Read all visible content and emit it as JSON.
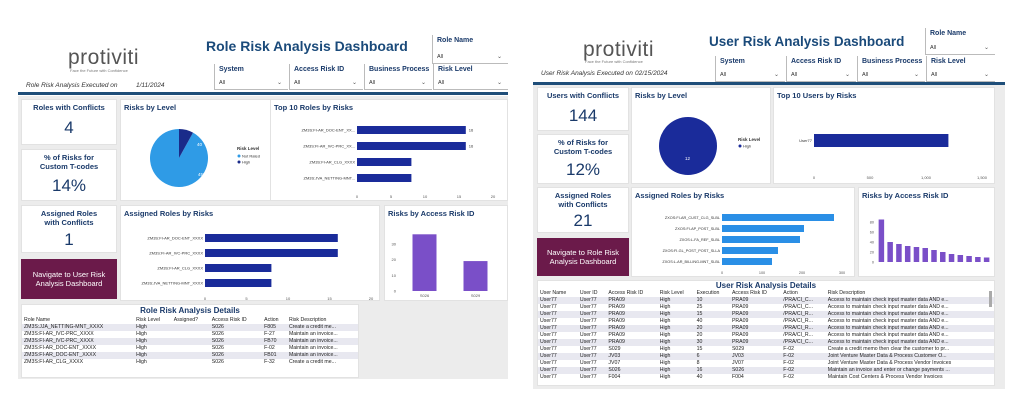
{
  "d1": {
    "logo": "protiviti",
    "logo_sub": "Face the Future with Confidence",
    "title": "Role Risk Analysis Dashboard",
    "executed_label": "Role Risk Analysis Executed on",
    "executed_date": "1/11/2024",
    "slicers": {
      "role_name": {
        "label": "Role Name",
        "value": "All"
      },
      "system": {
        "label": "System",
        "value": "All"
      },
      "access_risk_id": {
        "label": "Access Risk ID",
        "value": "All"
      },
      "business_process": {
        "label": "Business Process",
        "value": "All"
      },
      "risk_level": {
        "label": "Risk Level",
        "value": "All"
      }
    },
    "kpi_roles": {
      "title": "Roles with Conflicts",
      "value": "4"
    },
    "kpi_pct": {
      "title": "% of Risks for Custom T-codes",
      "value": "14%"
    },
    "kpi_assigned": {
      "title": "Assigned Roles with Conflicts",
      "value": "1"
    },
    "nav_button": "Navigate to User Risk Analysis Dashboard",
    "risks_by_level": {
      "title": "Risks by Level",
      "legend_title": "Risk Level",
      "legend": [
        "Not Rated",
        "High"
      ],
      "label_small": "40",
      "label_big": "458"
    },
    "top10": {
      "title": "Top 10 Roles by Risks"
    },
    "assigned": {
      "title": "Assigned Roles by Risks"
    },
    "access": {
      "title": "Risks by Access Risk ID"
    },
    "details": {
      "title": "Role Risk Analysis Details",
      "columns": [
        "Role Name",
        "Risk Level",
        "Assigned?",
        "Access Risk ID",
        "Action",
        "Risk Description"
      ],
      "rows": [
        [
          "ZM3S:JJA_NETTING-MNT_XXXX",
          "High",
          "",
          "S026",
          "F805",
          "Create a credit me..."
        ],
        [
          "ZM3S:FI-AR_IVC-PRC_XXXX",
          "High",
          "",
          "S026",
          "F-27",
          "Maintain an invoice..."
        ],
        [
          "ZM3S:FI-AR_IVC-PRC_XXXX",
          "High",
          "",
          "S026",
          "FB70",
          "Maintain an invoice..."
        ],
        [
          "ZM3S:FI-AR_DOC-ENT_XXXX",
          "High",
          "",
          "S026",
          "F-02",
          "Maintain an invoice..."
        ],
        [
          "ZM3S:FI-AR_DOC-ENT_XXXX",
          "High",
          "",
          "S026",
          "FB01",
          "Maintain an invoice..."
        ],
        [
          "ZM3S:FI-AR_CLG_XXXX",
          "High",
          "",
          "S026",
          "F-32",
          "Create a credit me..."
        ]
      ]
    }
  },
  "d2": {
    "logo": "protiviti",
    "logo_sub": "Face the Future with Confidence",
    "title": "User Risk Analysis Dashboard",
    "executed_label": "User Risk Analysis Executed on",
    "executed_date": "02/15/2024",
    "slicers": {
      "role_name": {
        "label": "Role Name",
        "value": "All"
      },
      "system": {
        "label": "System",
        "value": "All"
      },
      "access_risk_id": {
        "label": "Access Risk ID",
        "value": "All"
      },
      "business_process": {
        "label": "Business Process",
        "value": "All"
      },
      "risk_level": {
        "label": "Risk Level",
        "value": "All"
      }
    },
    "kpi_users": {
      "title": "Users with Conflicts",
      "value": "144"
    },
    "kpi_pct": {
      "title": "% of Risks for Custom T-codes",
      "value": "12%"
    },
    "kpi_assigned": {
      "title": "Assigned Roles with Conflicts",
      "value": "21"
    },
    "nav_button": "Navigate to Role Risk Analysis Dashboard",
    "risks_by_level": {
      "title": "Risks by Level",
      "legend_title": "Risk Level",
      "legend": [
        "High"
      ],
      "label_big": "12"
    },
    "top10": {
      "title": "Top 10 Users by Risks"
    },
    "assigned": {
      "title": "Assigned Roles by Risks"
    },
    "access": {
      "title": "Risks by Access Risk ID"
    },
    "details": {
      "title": "User Risk Analysis Details",
      "columns": [
        "User Name",
        "User ID",
        "Access Risk ID",
        "Risk Level",
        "Execution",
        "Access Risk ID",
        "Action",
        "Risk Description"
      ],
      "rows": [
        [
          "User77",
          "User77",
          "PRA09",
          "High",
          "10",
          "PRA09",
          "/PRA/CI_C...",
          "Access to maintain check input master data AND e..."
        ],
        [
          "User77",
          "User77",
          "PRA09",
          "High",
          "25",
          "PRA09",
          "/PRA/CI_C...",
          "Access to maintain check input master data AND e..."
        ],
        [
          "User77",
          "User77",
          "PRA09",
          "High",
          "15",
          "PRA09",
          "/PRA/CI_R...",
          "Access to maintain check input master data AND e..."
        ],
        [
          "User77",
          "User77",
          "PRA09",
          "High",
          "40",
          "PRA09",
          "/PRA/CI_R...",
          "Access to maintain check input master data AND e..."
        ],
        [
          "User77",
          "User77",
          "PRA09",
          "High",
          "20",
          "PRA09",
          "/PRA/CI_R...",
          "Access to maintain check input master data AND e..."
        ],
        [
          "User77",
          "User77",
          "PRA09",
          "High",
          "20",
          "PRA09",
          "/PRA/CI_R...",
          "Access to maintain check input master data AND e..."
        ],
        [
          "User77",
          "User77",
          "PRA09",
          "High",
          "30",
          "PRA09",
          "/PRA/CI_C...",
          "Access to maintain check input master data AND e..."
        ],
        [
          "User77",
          "User77",
          "S029",
          "High",
          "15",
          "S029",
          "F-02",
          "Create a credit memo then clear the customer to pr..."
        ],
        [
          "User77",
          "User77",
          "JV03",
          "High",
          "6",
          "JV03",
          "F-02",
          "Joint Venture Master Data & Process Customer O..."
        ],
        [
          "User77",
          "User77",
          "JV07",
          "High",
          "8",
          "JV07",
          "F-02",
          "Joint Venture Master Data & Process Vendor Invoices"
        ],
        [
          "User77",
          "User77",
          "S026",
          "High",
          "16",
          "S026",
          "F-02",
          "Maintain an invoice and enter or change payments ..."
        ],
        [
          "User77",
          "User77",
          "F004",
          "High",
          "40",
          "F004",
          "F-02",
          "Maintain Cost Centers & Process Vendor Invoices"
        ]
      ]
    }
  },
  "chart_data": [
    {
      "type": "pie",
      "title": "Risks by Level",
      "categories": [
        "Not Rated",
        "High"
      ],
      "values": [
        458,
        40
      ]
    },
    {
      "type": "bar",
      "title": "Top 10 Roles by Risks",
      "categories": [
        "ZM3S:FI-AR_DOC-ENT_XX...",
        "ZM3S:FI-AR_IVC-PRC_XX...",
        "ZM3S:FI-AR_CLG_XXXX",
        "ZM3S:JVA_NETTING-MNT..."
      ],
      "values": [
        16,
        16,
        8,
        8
      ],
      "data_labels": [
        "16",
        "16",
        "",
        ""
      ],
      "xticks": [
        "0",
        "5",
        "10",
        "15",
        "20"
      ],
      "xlim": [
        0,
        20
      ]
    },
    {
      "type": "bar",
      "title": "Assigned Roles by Risks",
      "categories": [
        "ZM3S:FI-AR_DOC-ENT_XXXX",
        "ZM3S:FI-AR_IVC-PRC_XXXX",
        "ZM3S:FI-AR_CLG_XXXX",
        "ZM3S:JVA_NETTING-MNT_XXXX"
      ],
      "values": [
        16,
        16,
        8,
        8
      ],
      "xticks": [
        "0",
        "5",
        "10",
        "15",
        "20"
      ],
      "xlim": [
        0,
        20
      ]
    },
    {
      "type": "bar",
      "title": "Risks by Access Risk ID",
      "categories": [
        "S026",
        "S029"
      ],
      "values": [
        36,
        19
      ],
      "yticks": [
        "0",
        "10",
        "20",
        "30"
      ],
      "ylim": [
        0,
        40
      ]
    },
    {
      "type": "pie",
      "title": "Risks by Level",
      "categories": [
        "High"
      ],
      "values": [
        12
      ]
    },
    {
      "type": "bar",
      "title": "Top 10 Users by Risks",
      "categories": [
        "User77"
      ],
      "values": [
        1280
      ],
      "xticks": [
        "0",
        "500",
        "1,000",
        "1,500"
      ],
      "xlim": [
        0,
        1600
      ]
    },
    {
      "type": "bar",
      "title": "Assigned Roles by Risks",
      "categories": [
        "ZXOS:FI-AR_CUST_CLG_SLBL",
        "ZXOS:FI-AP_POST_SLBL",
        "ZXOS:L-FA_REF_SLBL",
        "ZXOS:FI-GL_POST_POST_SLLA",
        "ZXOS:L-AR_BILLING-MNT_SLBL"
      ],
      "values": [
        280,
        205,
        195,
        140,
        125
      ],
      "xticks": [
        "0",
        "100",
        "200",
        "300"
      ],
      "xlim": [
        0,
        300
      ]
    },
    {
      "type": "bar",
      "title": "Risks by Access Risk ID",
      "categories": [
        "R01",
        "R02",
        "R03",
        "R04",
        "R05",
        "R06",
        "R07",
        "R08",
        "R09",
        "R10",
        "R11",
        "R12",
        "R13"
      ],
      "values": [
        85,
        40,
        36,
        32,
        30,
        28,
        24,
        20,
        16,
        14,
        12,
        10,
        9
      ],
      "yticks": [
        "0",
        "20",
        "40",
        "60",
        "80"
      ],
      "ylim": [
        0,
        100
      ]
    }
  ]
}
